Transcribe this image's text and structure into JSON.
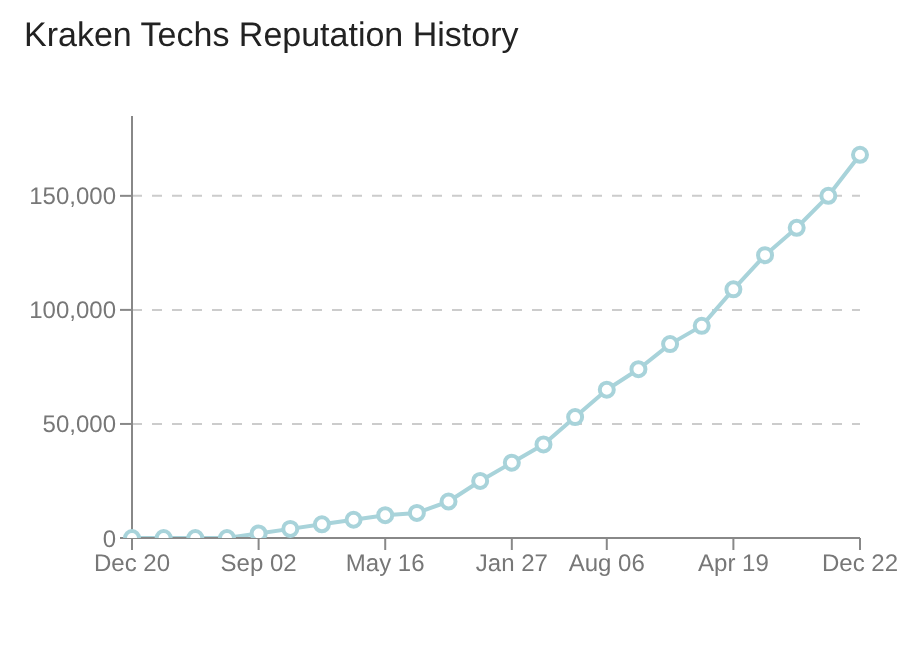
{
  "chart_data": {
    "type": "line",
    "title": "Kraken Techs Reputation History",
    "categories": [
      "Dec 20",
      null,
      null,
      null,
      "Sep 02",
      null,
      null,
      null,
      "May 16",
      null,
      null,
      null,
      "Jan 27",
      null,
      null,
      "Aug 06",
      null,
      null,
      null,
      "Apr 19",
      null,
      null,
      null,
      "Dec 22"
    ],
    "series": [
      {
        "color": "#a8d3da",
        "values": [
          0,
          0,
          0,
          0,
          2000,
          4000,
          6000,
          8000,
          10000,
          11000,
          16000,
          25000,
          33000,
          41000,
          53000,
          65000,
          74000,
          85000,
          93000,
          109000,
          124000,
          136000,
          150000,
          168000
        ]
      }
    ],
    "ylim": [
      0,
      185000
    ],
    "yticks": [
      0,
      {
        "value": 50000,
        "label": "50,000"
      },
      {
        "value": 100000,
        "label": "100,000"
      },
      {
        "value": 150000,
        "label": "150,000"
      }
    ],
    "grid": "y",
    "marker": "circle",
    "line_style": "solid"
  }
}
